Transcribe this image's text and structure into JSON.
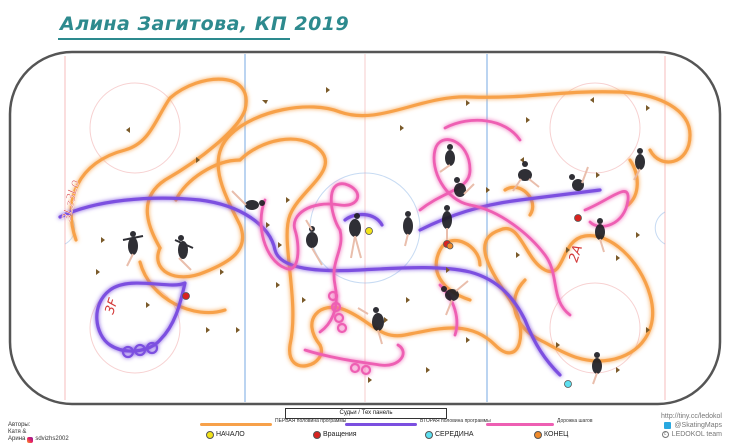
{
  "title": "Алина Загитова, КП 2019",
  "judges_label": "Судьи / Тех панель",
  "authors": {
    "heading": "Авторы:",
    "line2": "Катя &",
    "line3": "Арина",
    "handle": "sdvizhs2002"
  },
  "legend": {
    "first_half": "ПЕРВАЯ половина программы",
    "second_half": "ВТОРАЯ половина программы",
    "step_seq": "Дорожка шагов",
    "start": "НАЧАЛО",
    "spins": "Вращения",
    "middle": "СЕРЕДИНА",
    "end": "КОНЕЦ",
    "colors": {
      "first_half": "#f7a14a",
      "second_half": "#7b4fe0",
      "step_seq": "#ee5fb3",
      "start": "#f2e31a",
      "spins": "#d8231f",
      "middle": "#5ee0f0",
      "end": "#f08a2a"
    }
  },
  "jumps": {
    "combo": "3Lz3Lo",
    "flip": "3F",
    "lutz": "2A"
  },
  "credits": {
    "url": "http://tiny.cc/ledokol",
    "maps": "@SkatingMaps",
    "team": "LEDOKOL team"
  }
}
